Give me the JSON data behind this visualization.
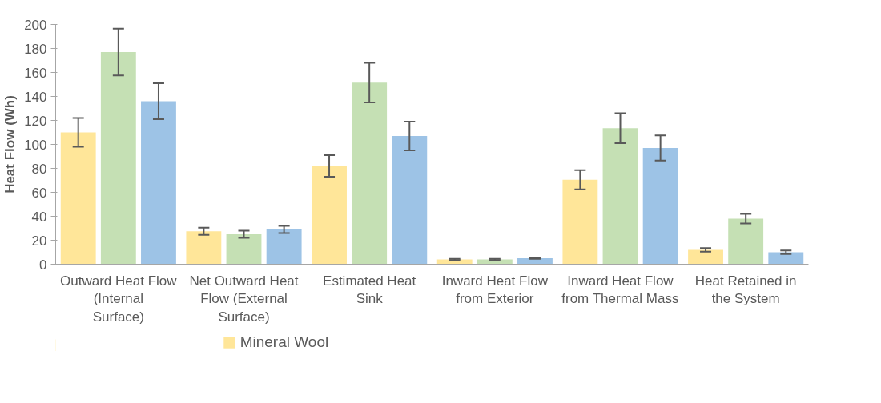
{
  "chart_data": {
    "type": "bar",
    "ylabel": "Heat Flow (Wh)",
    "categories": [
      "Outward Heat Flow (Internal Surface)",
      "Net Outward Heat Flow (External Surface)",
      "Estimated Heat Sink",
      "Inward Heat Flow from Exterior",
      "Inward Heat Flow from Thermal Mass",
      "Heat Retained in the System"
    ],
    "series": [
      {
        "name": "Mineral Wool",
        "color": "#ffe699",
        "values": [
          110,
          27.5,
          82,
          4,
          70.5,
          12
        ],
        "errors": [
          12,
          3,
          9,
          0.5,
          8,
          1.5
        ]
      },
      {
        "color": "#c5e0b4",
        "values": [
          177,
          25,
          151.5,
          4,
          113.5,
          38
        ],
        "errors": [
          19.5,
          3,
          16.5,
          0.5,
          12.5,
          4
        ]
      },
      {
        "color": "#9dc3e6",
        "values": [
          136,
          29,
          107,
          5,
          97,
          10
        ],
        "errors": [
          15,
          3,
          12,
          0.5,
          10.5,
          1.5
        ]
      }
    ],
    "ylim": [
      0,
      200
    ],
    "yticks": [
      0,
      20,
      40,
      60,
      80,
      100,
      120,
      140,
      160,
      180,
      200
    ],
    "grid": false,
    "legend": "bottom"
  }
}
